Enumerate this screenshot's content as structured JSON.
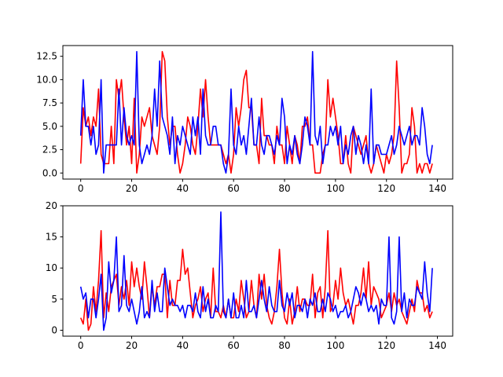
{
  "chart_data": [
    {
      "type": "line",
      "title": "",
      "xlabel": "",
      "ylabel": "",
      "xlim": [
        -7,
        146
      ],
      "ylim": [
        -0.65,
        13.65
      ],
      "xticks": [
        0,
        20,
        40,
        60,
        80,
        100,
        120,
        140
      ],
      "yticks": [
        0,
        2.5,
        5,
        7.5,
        10,
        12.5
      ],
      "ytick_labels": [
        "0.0",
        "2.5",
        "5.0",
        "7.5",
        "10.0",
        "12.5"
      ],
      "grid": false,
      "x": [
        0,
        1,
        2,
        3,
        4,
        5,
        6,
        7,
        8,
        9,
        10,
        11,
        12,
        13,
        14,
        15,
        16,
        17,
        18,
        19,
        20,
        21,
        22,
        23,
        24,
        25,
        26,
        27,
        28,
        29,
        30,
        31,
        32,
        33,
        34,
        35,
        36,
        37,
        38,
        39,
        40,
        41,
        42,
        43,
        44,
        45,
        46,
        47,
        48,
        49,
        50,
        51,
        52,
        53,
        54,
        55,
        56,
        57,
        58,
        59,
        60,
        61,
        62,
        63,
        64,
        65,
        66,
        67,
        68,
        69,
        70,
        71,
        72,
        73,
        74,
        75,
        76,
        77,
        78,
        79,
        80,
        81,
        82,
        83,
        84,
        85,
        86,
        87,
        88,
        89,
        90,
        91,
        92,
        93,
        94,
        95,
        96,
        97,
        98,
        99,
        100,
        101,
        102,
        103,
        104,
        105,
        106,
        107,
        108,
        109,
        110,
        111,
        112,
        113,
        114,
        115,
        116,
        117,
        118,
        119,
        120,
        121,
        122,
        123,
        124,
        125,
        126,
        127,
        128,
        129,
        130,
        131,
        132,
        133,
        134,
        135,
        136,
        137,
        138
      ],
      "series": [
        {
          "color": "#ff0000",
          "values": [
            1,
            7,
            5,
            6,
            4,
            6,
            5,
            9,
            2,
            1,
            1,
            1,
            5,
            1,
            10,
            8,
            10,
            6,
            3,
            5,
            1,
            8,
            0,
            2,
            6,
            5,
            6,
            7,
            4,
            3,
            2,
            5,
            13,
            12,
            6,
            3,
            5,
            5,
            2,
            0,
            1,
            3,
            6,
            5,
            3,
            2,
            5,
            9,
            6,
            10,
            6,
            3,
            3,
            3,
            3,
            3,
            2,
            1,
            2,
            0,
            2,
            7,
            5,
            7,
            10,
            11,
            7,
            7,
            3,
            3,
            1,
            8,
            4,
            4,
            3,
            3,
            1,
            5,
            3,
            3,
            1,
            5,
            3,
            1,
            4,
            3,
            1,
            5,
            5,
            6,
            3,
            3,
            0,
            0,
            0,
            2,
            3,
            10,
            6,
            8,
            6,
            4,
            1,
            1,
            4,
            1,
            0,
            5,
            4,
            3,
            2,
            3,
            4,
            1,
            0,
            1,
            3,
            2,
            1,
            0,
            2,
            1,
            2,
            4,
            12,
            7,
            0,
            1,
            1,
            2,
            7,
            5,
            0,
            1,
            0,
            1,
            1,
            0,
            1
          ]
        },
        {
          "color": "#0000ff",
          "values": [
            4,
            10,
            5,
            5,
            3,
            5,
            2,
            3,
            10,
            0,
            3,
            3,
            3,
            3,
            3,
            9,
            3,
            7,
            4,
            3,
            4,
            3,
            13,
            3,
            1,
            2,
            3,
            2,
            4,
            9,
            5,
            12,
            6,
            5,
            4,
            2,
            6,
            1,
            4,
            3,
            5,
            4,
            3,
            2,
            6,
            4,
            6,
            2,
            9,
            4,
            3,
            3,
            5,
            5,
            3,
            3,
            1,
            0,
            2,
            9,
            3,
            2,
            5,
            3,
            4,
            2,
            5,
            8,
            3,
            3,
            6,
            3,
            2,
            4,
            4,
            3,
            2,
            4,
            3,
            8,
            6,
            1,
            3,
            2,
            4,
            2,
            1,
            3,
            6,
            5,
            3,
            13,
            4,
            3,
            5,
            1,
            3,
            3,
            5,
            4,
            5,
            3,
            5,
            1,
            3,
            2,
            4,
            5,
            2,
            4,
            3,
            1,
            3,
            1,
            9,
            1,
            3,
            3,
            2,
            2,
            2,
            3,
            4,
            2,
            3,
            5,
            4,
            3,
            4,
            5,
            3,
            4,
            4,
            3,
            7,
            5,
            2,
            1,
            3
          ]
        }
      ]
    },
    {
      "type": "line",
      "title": "",
      "xlabel": "",
      "ylabel": "",
      "xlim": [
        -7,
        146
      ],
      "ylim": [
        -0.95,
        20
      ],
      "xticks": [
        0,
        20,
        40,
        60,
        80,
        100,
        120,
        140
      ],
      "yticks": [
        0,
        5,
        10,
        15,
        20
      ],
      "ytick_labels": [
        "0",
        "5",
        "10",
        "15",
        "20"
      ],
      "grid": false,
      "x": [
        0,
        1,
        2,
        3,
        4,
        5,
        6,
        7,
        8,
        9,
        10,
        11,
        12,
        13,
        14,
        15,
        16,
        17,
        18,
        19,
        20,
        21,
        22,
        23,
        24,
        25,
        26,
        27,
        28,
        29,
        30,
        31,
        32,
        33,
        34,
        35,
        36,
        37,
        38,
        39,
        40,
        41,
        42,
        43,
        44,
        45,
        46,
        47,
        48,
        49,
        50,
        51,
        52,
        53,
        54,
        55,
        56,
        57,
        58,
        59,
        60,
        61,
        62,
        63,
        64,
        65,
        66,
        67,
        68,
        69,
        70,
        71,
        72,
        73,
        74,
        75,
        76,
        77,
        78,
        79,
        80,
        81,
        82,
        83,
        84,
        85,
        86,
        87,
        88,
        89,
        90,
        91,
        92,
        93,
        94,
        95,
        96,
        97,
        98,
        99,
        100,
        101,
        102,
        103,
        104,
        105,
        106,
        107,
        108,
        109,
        110,
        111,
        112,
        113,
        114,
        115,
        116,
        117,
        118,
        119,
        120,
        121,
        122,
        123,
        124,
        125,
        126,
        127,
        128,
        129,
        130,
        131,
        132,
        133,
        134,
        135,
        136,
        137,
        138
      ],
      "series": [
        {
          "color": "#ff0000",
          "values": [
            2,
            1,
            5,
            0,
            1,
            7,
            3,
            8,
            16,
            2,
            6,
            3,
            7,
            8,
            9,
            4,
            7,
            5,
            8,
            4,
            11,
            7,
            10,
            7,
            5,
            11,
            7,
            2,
            7,
            4,
            7,
            7,
            9,
            9,
            2,
            8,
            4,
            4,
            8,
            8,
            13,
            9,
            10,
            6,
            2,
            4,
            5,
            7,
            3,
            5,
            6,
            2,
            10,
            3,
            3,
            2,
            4,
            2,
            5,
            2,
            2,
            5,
            3,
            8,
            5,
            2,
            3,
            8,
            4,
            2,
            9,
            5,
            9,
            4,
            2,
            1,
            3,
            7,
            13,
            6,
            2,
            1,
            5,
            1,
            3,
            7,
            3,
            5,
            5,
            4,
            4,
            9,
            2,
            6,
            7,
            2,
            7,
            16,
            3,
            4,
            8,
            5,
            10,
            6,
            4,
            5,
            3,
            1,
            4,
            4,
            6,
            10,
            5,
            11,
            4,
            7,
            6,
            5,
            2,
            3,
            4,
            6,
            3,
            6,
            4,
            5,
            3,
            2,
            1,
            3,
            5,
            3,
            8,
            6,
            6,
            3,
            4,
            2,
            3
          ]
        },
        {
          "color": "#0000ff",
          "values": [
            7,
            5,
            6,
            2,
            5,
            5,
            2,
            5,
            9,
            0,
            2,
            11,
            6,
            8,
            15,
            3,
            4,
            12,
            4,
            3,
            5,
            3,
            1,
            3,
            7,
            2,
            3,
            2,
            8,
            3,
            6,
            3,
            3,
            10,
            7,
            4,
            5,
            4,
            4,
            3,
            4,
            2,
            4,
            4,
            3,
            6,
            3,
            2,
            7,
            3,
            5,
            2,
            2,
            4,
            3,
            19,
            3,
            2,
            5,
            2,
            6,
            2,
            2,
            4,
            2,
            8,
            3,
            3,
            4,
            2,
            5,
            8,
            5,
            3,
            7,
            4,
            3,
            3,
            8,
            4,
            3,
            6,
            4,
            6,
            2,
            4,
            4,
            3,
            5,
            2,
            5,
            4,
            6,
            3,
            3,
            5,
            3,
            6,
            5,
            3,
            4,
            2,
            3,
            3,
            4,
            2,
            3,
            5,
            7,
            6,
            4,
            6,
            5,
            3,
            4,
            3,
            4,
            1,
            5,
            4,
            4,
            15,
            2,
            1,
            3,
            15,
            3,
            6,
            2,
            5,
            4,
            4,
            7,
            6,
            5,
            11,
            6,
            3,
            10
          ]
        }
      ]
    }
  ]
}
